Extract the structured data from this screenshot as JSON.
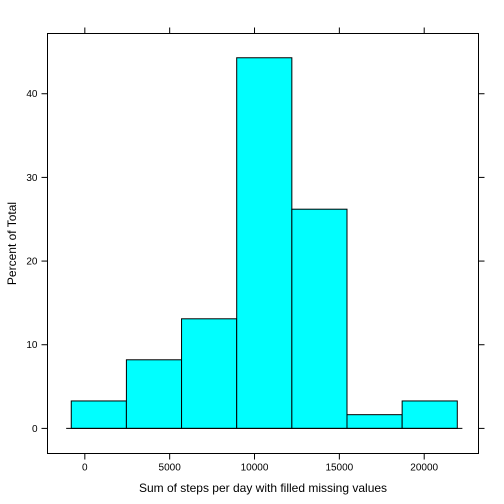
{
  "chart_data": {
    "type": "bar",
    "xlabel": "Sum of steps per day with filled missing values",
    "ylabel": "Percent of Total",
    "xlim": [
      -2200,
      23200
    ],
    "ylim": [
      -3,
      47.2
    ],
    "x_ticks": [
      0,
      5000,
      10000,
      15000,
      20000
    ],
    "x_tick_labels": [
      "0",
      "5000",
      "10000",
      "15000",
      "20000"
    ],
    "y_ticks": [
      0,
      10,
      20,
      30,
      40
    ],
    "y_tick_labels": [
      "0",
      "10",
      "20",
      "30",
      "40"
    ],
    "bins": [
      {
        "x0": -800,
        "x1": 2450,
        "value": 3.28
      },
      {
        "x0": 2450,
        "x1": 5700,
        "value": 8.2
      },
      {
        "x0": 5700,
        "x1": 8950,
        "value": 13.1
      },
      {
        "x0": 8950,
        "x1": 12200,
        "value": 44.3
      },
      {
        "x0": 12200,
        "x1": 15450,
        "value": 26.2
      },
      {
        "x0": 15450,
        "x1": 18700,
        "value": 1.64
      },
      {
        "x0": 18700,
        "x1": 21950,
        "value": 3.28
      }
    ],
    "baseline": [
      -1100,
      22250
    ],
    "bar_color": "#00ffff",
    "edge_color": "#000000",
    "grid": false,
    "legend": "none"
  }
}
